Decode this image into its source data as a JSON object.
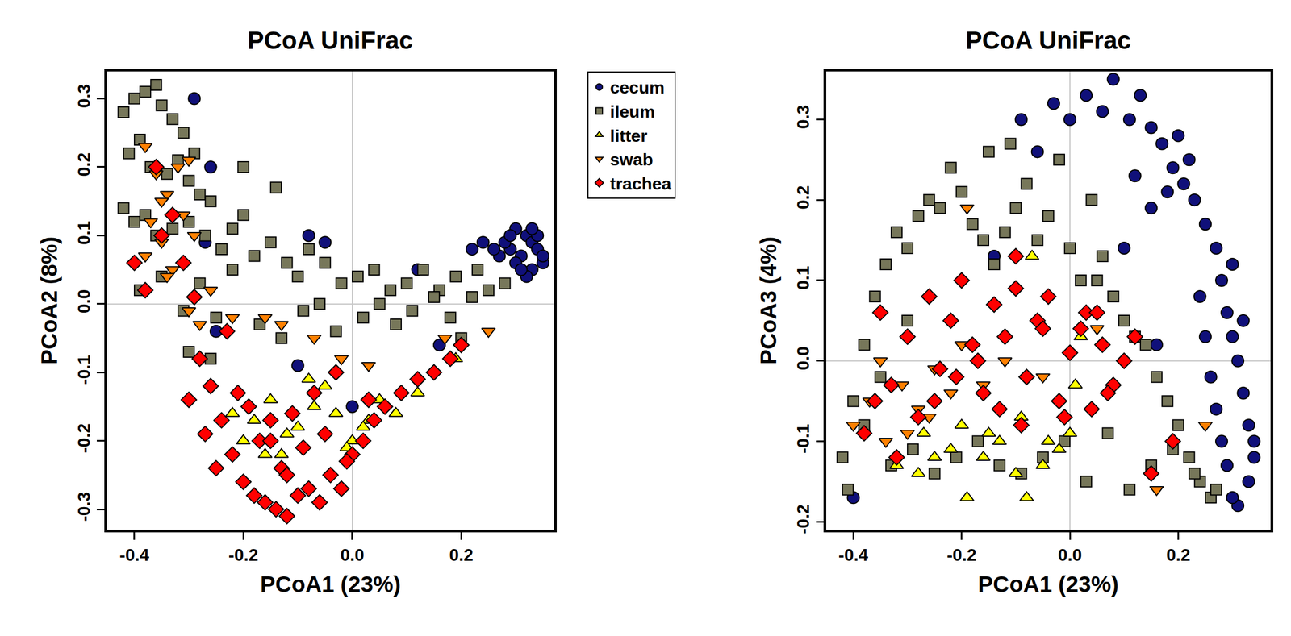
{
  "chart_data": [
    {
      "type": "scatter",
      "title": "PCoA UniFrac",
      "x_label": "PCoA1 (23%)",
      "y_label": "PCoA2 (8%)",
      "xlim": [
        -0.45,
        0.37
      ],
      "ylim": [
        -0.33,
        0.34
      ],
      "xticks": [
        -0.4,
        -0.2,
        {
          "value": 0,
          "label": "0.0"
        },
        0.2
      ],
      "yticks": [
        -0.3,
        -0.2,
        -0.1,
        {
          "value": 0,
          "label": "0.0"
        },
        0.1,
        0.2,
        0.3
      ],
      "legend": "right",
      "series": [
        {
          "name": "cecum",
          "color": "#10107a",
          "marker": "circle",
          "x": [
            0.3,
            0.32,
            0.33,
            0.34,
            0.31,
            0.29,
            0.28,
            0.35,
            0.33,
            0.3,
            0.32,
            0.34,
            0.27,
            0.26,
            0.31,
            0.29,
            0.33,
            0.35,
            0.24,
            0.22,
            -0.29,
            -0.26,
            -0.27,
            -0.25,
            -0.1,
            -0.05,
            0.0,
            -0.08,
            0.12,
            0.16
          ],
          "y": [
            0.11,
            0.1,
            0.09,
            0.08,
            0.07,
            0.08,
            0.09,
            0.06,
            0.05,
            0.06,
            0.04,
            0.1,
            0.07,
            0.08,
            0.05,
            0.1,
            0.11,
            0.07,
            0.09,
            0.08,
            0.3,
            0.2,
            0.09,
            -0.04,
            -0.09,
            0.09,
            -0.15,
            0.1,
            0.05,
            -0.06
          ]
        },
        {
          "name": "ileum",
          "color": "#77775a",
          "marker": "square",
          "x": [
            -0.42,
            -0.4,
            -0.38,
            -0.36,
            -0.35,
            -0.33,
            -0.31,
            -0.29,
            -0.41,
            -0.39,
            -0.37,
            -0.34,
            -0.32,
            -0.3,
            -0.28,
            -0.26,
            -0.42,
            -0.4,
            -0.38,
            -0.36,
            -0.33,
            -0.3,
            -0.27,
            -0.24,
            -0.22,
            -0.2,
            -0.39,
            -0.35,
            -0.31,
            -0.28,
            -0.25,
            -0.22,
            -0.18,
            -0.15,
            -0.12,
            -0.1,
            -0.08,
            -0.05,
            -0.02,
            0.01,
            0.04,
            0.07,
            0.1,
            0.13,
            0.16,
            0.19,
            0.22,
            0.25,
            0.28,
            -0.17,
            -0.13,
            -0.09,
            -0.06,
            -0.03,
            0.02,
            0.05,
            0.08,
            0.11,
            0.15,
            0.18,
            -0.2,
            -0.14,
            -0.3,
            -0.26,
            0.2,
            0.23
          ],
          "y": [
            0.28,
            0.3,
            0.31,
            0.32,
            0.29,
            0.27,
            0.25,
            0.22,
            0.22,
            0.24,
            0.2,
            0.19,
            0.21,
            0.18,
            0.16,
            0.15,
            0.14,
            0.12,
            0.13,
            0.1,
            0.11,
            0.12,
            0.1,
            0.08,
            0.11,
            0.13,
            0.02,
            0.04,
            -0.01,
            0.03,
            -0.02,
            0.05,
            0.07,
            0.09,
            0.06,
            0.04,
            0.08,
            0.06,
            0.03,
            0.04,
            0.05,
            0.02,
            0.03,
            0.05,
            0.02,
            0.04,
            0.01,
            0.02,
            0.03,
            -0.03,
            -0.05,
            -0.01,
            0.0,
            -0.04,
            -0.02,
            0.0,
            -0.03,
            -0.01,
            0.01,
            -0.02,
            0.2,
            0.17,
            -0.07,
            -0.08,
            -0.05,
            0.05
          ]
        },
        {
          "name": "litter",
          "color": "#ffff00",
          "marker": "triangle-up",
          "x": [
            -0.22,
            -0.18,
            -0.15,
            -0.12,
            -0.1,
            -0.07,
            -0.05,
            -0.03,
            0.0,
            0.03,
            0.05,
            0.08,
            0.12,
            0.19,
            -0.2,
            -0.16,
            -0.08,
            -0.01,
            0.02,
            -0.13
          ],
          "y": [
            -0.16,
            -0.17,
            -0.14,
            -0.19,
            -0.18,
            -0.15,
            -0.12,
            -0.16,
            -0.2,
            -0.17,
            -0.14,
            -0.16,
            -0.13,
            -0.08,
            -0.2,
            -0.22,
            -0.11,
            -0.21,
            -0.18,
            -0.22
          ]
        },
        {
          "name": "swab",
          "color": "#ff8000",
          "marker": "triangle-down",
          "x": [
            -0.38,
            -0.36,
            -0.34,
            -0.32,
            -0.3,
            -0.37,
            -0.35,
            -0.33,
            -0.29,
            -0.38,
            -0.34,
            -0.3,
            -0.28,
            -0.26,
            -0.22,
            -0.16,
            -0.13,
            -0.07,
            -0.02,
            0.03,
            0.17,
            0.25,
            -0.35,
            -0.31
          ],
          "y": [
            0.23,
            0.19,
            0.16,
            0.2,
            0.21,
            0.12,
            0.09,
            0.05,
            0.1,
            0.07,
            0.04,
            -0.01,
            -0.03,
            0.02,
            -0.02,
            -0.02,
            -0.03,
            -0.05,
            -0.08,
            -0.09,
            -0.05,
            -0.04,
            0.15,
            0.13
          ]
        },
        {
          "name": "trachea",
          "color": "#ff0000",
          "marker": "diamond",
          "x": [
            -0.3,
            -0.27,
            -0.25,
            -0.22,
            -0.2,
            -0.18,
            -0.16,
            -0.14,
            -0.12,
            -0.1,
            -0.08,
            -0.06,
            -0.04,
            -0.02,
            0.0,
            0.02,
            0.04,
            -0.24,
            -0.21,
            -0.17,
            -0.13,
            -0.09,
            -0.05,
            -0.01,
            0.03,
            -0.19,
            -0.15,
            -0.11,
            -0.07,
            -0.03,
            0.06,
            0.09,
            0.12,
            0.15,
            0.18,
            0.2,
            -0.28,
            -0.26,
            -0.4,
            -0.38,
            -0.35,
            -0.33,
            -0.31,
            -0.29,
            -0.36,
            -0.23,
            -0.15,
            -0.12
          ],
          "y": [
            -0.14,
            -0.19,
            -0.24,
            -0.22,
            -0.26,
            -0.28,
            -0.29,
            -0.3,
            -0.31,
            -0.28,
            -0.27,
            -0.29,
            -0.25,
            -0.27,
            -0.22,
            -0.2,
            -0.17,
            -0.17,
            -0.13,
            -0.2,
            -0.24,
            -0.21,
            -0.19,
            -0.23,
            -0.14,
            -0.15,
            -0.17,
            -0.16,
            -0.13,
            -0.1,
            -0.15,
            -0.13,
            -0.11,
            -0.1,
            -0.08,
            -0.06,
            -0.08,
            -0.12,
            0.06,
            0.02,
            0.1,
            0.13,
            0.06,
            0.01,
            0.2,
            -0.04,
            -0.2,
            -0.25
          ]
        }
      ]
    },
    {
      "type": "scatter",
      "title": "PCoA UniFrac",
      "x_label": "PCoA1 (23%)",
      "y_label": "PCoA3 (4%)",
      "xlim": [
        -0.45,
        0.37
      ],
      "ylim": [
        -0.21,
        0.36
      ],
      "xticks": [
        -0.4,
        -0.2,
        {
          "value": 0,
          "label": "0.0"
        },
        0.2
      ],
      "yticks": [
        -0.2,
        -0.1,
        {
          "value": 0,
          "label": "0.0"
        },
        0.1,
        0.2,
        0.3
      ],
      "series": [
        {
          "name": "cecum",
          "color": "#10107a",
          "marker": "circle",
          "x": [
            -0.09,
            -0.06,
            -0.03,
            0.0,
            0.03,
            0.06,
            0.08,
            0.11,
            0.13,
            0.15,
            0.17,
            0.19,
            0.21,
            0.23,
            0.25,
            0.27,
            0.28,
            0.29,
            0.3,
            0.31,
            0.32,
            0.33,
            0.34,
            0.33,
            0.31,
            0.3,
            0.29,
            0.28,
            0.27,
            0.26,
            0.25,
            0.24,
            0.3,
            0.32,
            0.34,
            0.22,
            0.2,
            0.18,
            0.15,
            0.12,
            -0.4,
            -0.14,
            0.16,
            0.1
          ],
          "y": [
            0.3,
            0.26,
            0.32,
            0.3,
            0.33,
            0.31,
            0.35,
            0.3,
            0.33,
            0.29,
            0.27,
            0.24,
            0.22,
            0.2,
            0.17,
            0.14,
            0.1,
            0.06,
            0.03,
            0.0,
            -0.04,
            -0.08,
            -0.12,
            -0.15,
            -0.18,
            -0.17,
            -0.13,
            -0.1,
            -0.06,
            -0.02,
            0.03,
            0.08,
            0.12,
            0.05,
            -0.1,
            0.25,
            0.28,
            0.21,
            0.19,
            0.23,
            -0.17,
            0.13,
            0.02,
            0.14
          ]
        },
        {
          "name": "ileum",
          "color": "#77775a",
          "marker": "square",
          "x": [
            -0.42,
            -0.4,
            -0.38,
            -0.36,
            -0.34,
            -0.32,
            -0.3,
            -0.28,
            -0.26,
            -0.24,
            -0.22,
            -0.2,
            -0.18,
            -0.16,
            -0.14,
            -0.12,
            -0.1,
            -0.08,
            -0.06,
            -0.04,
            -0.02,
            0.0,
            0.02,
            0.04,
            0.06,
            0.08,
            0.1,
            0.12,
            0.14,
            0.16,
            0.18,
            0.2,
            0.22,
            0.24,
            0.26,
            -0.38,
            -0.33,
            -0.29,
            -0.25,
            -0.21,
            -0.17,
            -0.13,
            -0.09,
            -0.05,
            -0.01,
            0.03,
            0.07,
            0.11,
            0.15,
            0.19,
            0.23,
            0.27,
            -0.41,
            -0.35,
            -0.3,
            -0.15,
            -0.11,
            0.05
          ],
          "y": [
            -0.12,
            -0.05,
            0.02,
            0.08,
            0.12,
            0.16,
            0.14,
            0.18,
            0.2,
            0.19,
            0.24,
            0.21,
            0.17,
            0.15,
            0.12,
            0.16,
            0.19,
            0.22,
            0.15,
            0.18,
            0.25,
            0.14,
            0.1,
            0.2,
            0.13,
            0.08,
            0.05,
            0.03,
            0.02,
            -0.02,
            -0.05,
            -0.08,
            -0.12,
            -0.15,
            -0.17,
            -0.08,
            -0.13,
            -0.11,
            -0.14,
            -0.12,
            -0.1,
            -0.13,
            -0.14,
            -0.12,
            -0.1,
            -0.15,
            -0.09,
            -0.16,
            -0.13,
            -0.11,
            -0.14,
            -0.16,
            -0.16,
            -0.02,
            0.05,
            0.26,
            0.27,
            0.1
          ]
        },
        {
          "name": "litter",
          "color": "#ffff00",
          "marker": "triangle-up",
          "x": [
            -0.32,
            -0.28,
            -0.25,
            -0.22,
            -0.19,
            -0.16,
            -0.13,
            -0.1,
            -0.08,
            -0.05,
            -0.02,
            0.0,
            0.02,
            -0.2,
            -0.15,
            -0.09,
            -0.04,
            0.01,
            -0.07,
            -0.27
          ],
          "y": [
            -0.13,
            -0.14,
            -0.12,
            -0.11,
            -0.17,
            -0.12,
            -0.1,
            -0.14,
            -0.17,
            -0.13,
            -0.11,
            -0.09,
            0.03,
            -0.08,
            -0.09,
            -0.07,
            -0.1,
            -0.03,
            0.13,
            -0.09
          ]
        },
        {
          "name": "swab",
          "color": "#ff8000",
          "marker": "triangle-down",
          "x": [
            -0.4,
            -0.37,
            -0.34,
            -0.31,
            -0.28,
            -0.25,
            -0.22,
            -0.19,
            -0.16,
            -0.12,
            -0.2,
            0.16,
            0.25,
            -0.35,
            -0.3,
            -0.05,
            0.05,
            -0.26
          ],
          "y": [
            -0.08,
            -0.05,
            -0.1,
            -0.03,
            -0.06,
            -0.01,
            -0.04,
            0.19,
            -0.03,
            0.0,
            0.02,
            -0.16,
            -0.08,
            0.0,
            -0.09,
            -0.02,
            0.04,
            -0.07
          ]
        },
        {
          "name": "trachea",
          "color": "#ff0000",
          "marker": "diamond",
          "x": [
            -0.38,
            -0.35,
            -0.33,
            -0.3,
            -0.28,
            -0.26,
            -0.24,
            -0.22,
            -0.2,
            -0.18,
            -0.16,
            -0.14,
            -0.12,
            -0.1,
            -0.08,
            -0.06,
            -0.04,
            -0.02,
            0.0,
            0.02,
            0.04,
            0.06,
            0.08,
            0.1,
            0.12,
            -0.25,
            -0.21,
            -0.17,
            -0.13,
            -0.09,
            -0.05,
            -0.01,
            0.03,
            0.07,
            0.15,
            0.19,
            -0.36,
            -0.32,
            0.05,
            -0.1
          ],
          "y": [
            -0.09,
            0.06,
            -0.03,
            0.03,
            -0.07,
            0.08,
            -0.01,
            0.05,
            0.1,
            0.02,
            -0.04,
            0.07,
            0.03,
            0.13,
            -0.02,
            0.05,
            0.08,
            -0.05,
            0.01,
            0.04,
            -0.06,
            0.02,
            -0.03,
            0.0,
            0.03,
            -0.05,
            -0.02,
            0.0,
            -0.06,
            -0.08,
            0.04,
            -0.07,
            0.06,
            -0.04,
            -0.14,
            -0.1,
            -0.05,
            -0.12,
            0.06,
            0.09
          ]
        }
      ]
    }
  ]
}
